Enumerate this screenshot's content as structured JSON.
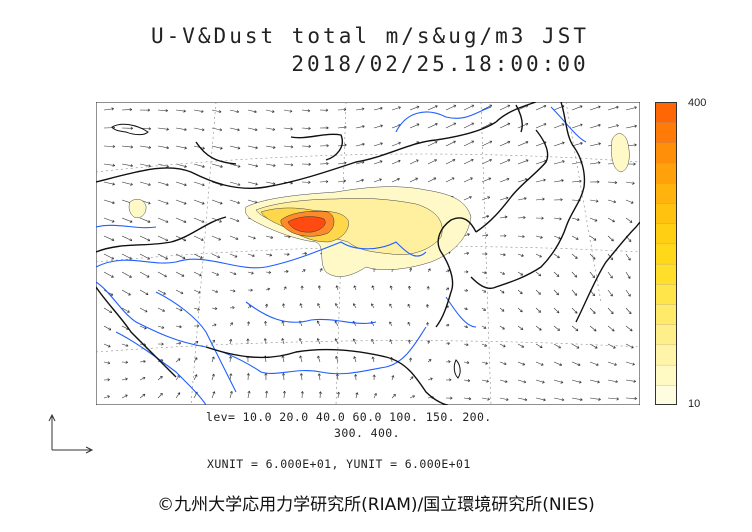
{
  "title": {
    "line1": "U-V&Dust total m/s&ug/m3 JST",
    "line2": "2018/02/25.18:00:00"
  },
  "colorbar": {
    "max_label": "400",
    "min_label": "10",
    "colors": [
      "#fffde0",
      "#fff9c4",
      "#fff4a8",
      "#ffef8a",
      "#ffea6a",
      "#ffe44a",
      "#ffdf2a",
      "#ffd81a",
      "#ffcf14",
      "#ffc20f",
      "#ffb30c",
      "#ffa10a",
      "#ff8e08",
      "#ff7a06",
      "#ff6604"
    ]
  },
  "levels": {
    "line1": "lev= 10.0 20.0 40.0 60.0 100. 150. 200.",
    "line2": "300. 400."
  },
  "units_text": "XUNIT = 6.000E+01, YUNIT = 6.000E+01",
  "credit": "©九州大学応用力学研究所(RIAM)/国立環境研究所(NIES)",
  "map": {
    "coast_color": "#111111",
    "river_color": "#1f5fff",
    "dust_colors": {
      "low": "#fffbd2",
      "mid": "#fff1a3",
      "high": "#ffd94a",
      "peak": "#ff7e2a",
      "core": "#ff4a12"
    }
  }
}
